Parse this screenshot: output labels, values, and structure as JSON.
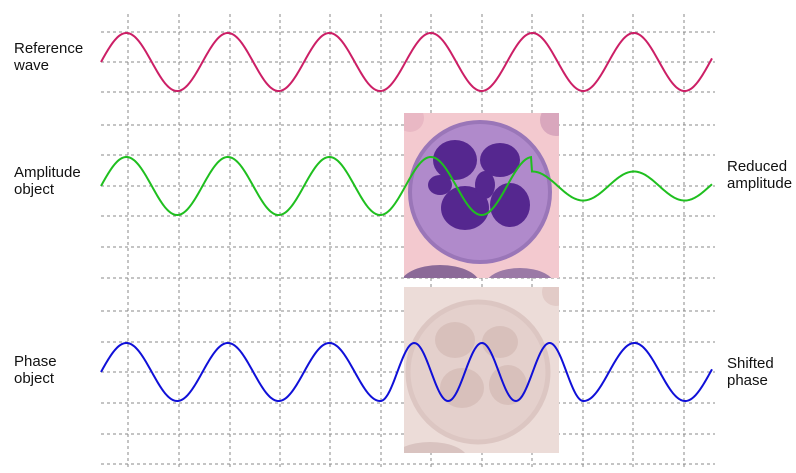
{
  "labels": {
    "reference": [
      "Reference",
      "wave"
    ],
    "amplitude": [
      "Amplitude",
      "object"
    ],
    "phase": [
      "Phase",
      "object"
    ],
    "reduced": [
      "Reduced",
      "amplitude"
    ],
    "shifted": [
      "Shifted",
      "phase"
    ]
  },
  "colors": {
    "reference_wave": "#cc1f66",
    "amplitude_wave": "#1fbf1f",
    "phase_wave": "#1010d8",
    "grid": "#888888",
    "cell_background": "#f3c9cf",
    "cell_cytoplasm": "#b08acb",
    "cell_nucleus": "#55278f",
    "phase_cell_background": "#ecdcd8",
    "phase_cell_tone": "#dcc6c2"
  },
  "waves": {
    "cycles": 6,
    "amplitude_reduction": 0.5,
    "phase_object_shift": "shorter wavelength inside object"
  }
}
